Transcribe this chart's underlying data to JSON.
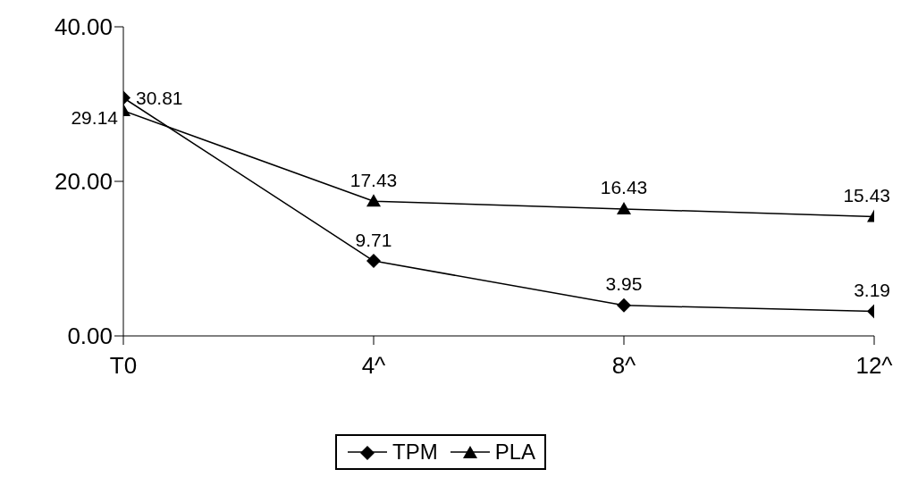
{
  "chart_data": {
    "type": "line",
    "categories": [
      "T0",
      "4^",
      "8^",
      "12^"
    ],
    "series": [
      {
        "name": "TPM",
        "color": "#000000",
        "marker": "diamond",
        "values": [
          30.81,
          9.71,
          3.95,
          3.19
        ]
      },
      {
        "name": "PLA",
        "color": "#000000",
        "marker": "triangle",
        "values": [
          29.14,
          17.43,
          16.43,
          15.43
        ]
      }
    ],
    "ylim": [
      0,
      40
    ],
    "yticks": [
      {
        "value": 0,
        "label": "0.00"
      },
      {
        "value": 20,
        "label": "20.00"
      },
      {
        "value": 40,
        "label": "40.00"
      }
    ],
    "data_labels": true,
    "grid": false,
    "legend": "bottom",
    "line_style": "solid"
  }
}
